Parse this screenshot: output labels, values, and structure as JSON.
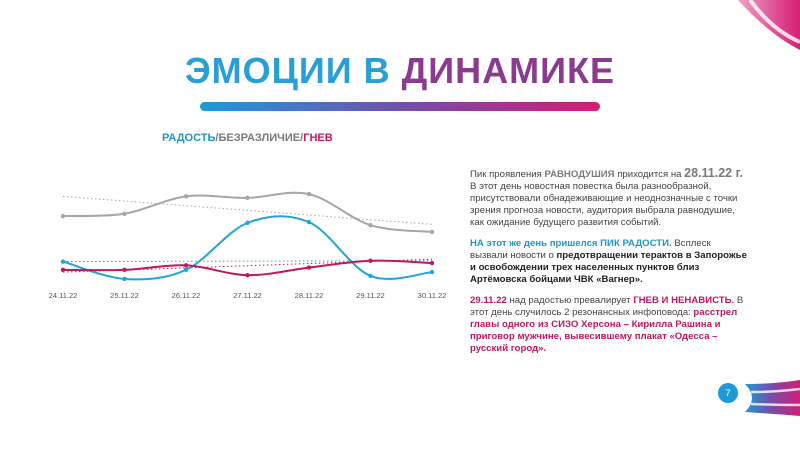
{
  "title": {
    "part1": "ЭМОЦИИ В ",
    "part2": "ДИНАМИКЕ"
  },
  "chart_data": {
    "type": "line",
    "title_parts": {
      "joy": "РАДОСТЬ",
      "sep1": "/",
      "indifference": "БЕЗРАЗЛИЧИЕ",
      "sep2": "/",
      "anger": "ГНЕВ"
    },
    "categories": [
      "24.11.22",
      "25.11.22",
      "26.11.22",
      "27.11.22",
      "28.11.22",
      "29.11.22",
      "30.11.22"
    ],
    "series": [
      {
        "name": "БЕЗРАЗЛИЧИЕ",
        "color": "#a6a6a6",
        "values": [
          69,
          72,
          95,
          93,
          98,
          57,
          48
        ]
      },
      {
        "name": "РАДОСТЬ",
        "color": "#1fa6d6",
        "values": [
          9,
          -14,
          -2,
          60,
          61,
          -10,
          -5
        ]
      },
      {
        "name": "ГНЕВ",
        "color": "#c2185b",
        "values": [
          -2,
          -2,
          4,
          -9,
          1,
          10,
          7
        ]
      }
    ],
    "trendlines": [
      {
        "series": "БЕЗРАЗЛИЧИЕ",
        "color": "#a6a6a6",
        "style": "dotted",
        "from": 95,
        "to": 58
      },
      {
        "series": "РАДОСТЬ",
        "color": "#1fa6d6",
        "style": "dotted",
        "from": 9,
        "to": 10
      },
      {
        "series": "ГНЕВ",
        "color": "#c2185b",
        "style": "dotted",
        "from": -5,
        "to": 12
      }
    ],
    "ylim": [
      -22,
      110
    ],
    "grid": false,
    "legend": "none"
  },
  "text": {
    "p1_a": "Пик проявления ",
    "p1_b": "РАВНОДУШИЯ",
    "p1_c": " приходится на ",
    "p1_d": "28.11.22 г.",
    "p1_e": " В этот день новостная повестка была разнообразной, присутствовали обнадеживающие и неоднозначные с точки зрения прогноза новости, аудитория выбрала равнодушие, как ожидание будущего развития событий.",
    "p2_a": "НА этот же день пришелся ПИК РАДОСТИ.",
    "p2_b": " Всплеск вызвали новости о ",
    "p2_c": "предотвращении терактов в Запорожье и  освобождении трех населенных пунктов близ Артёмовска бойцами ЧВК «Вагнер».",
    "p3_a": "29.11.22",
    "p3_b": " над радостью превалирует ",
    "p3_c": "ГНЕВ И НЕНАВИСТЬ.",
    "p3_d": " В этот день случилось 2 резонансных инфоповода: ",
    "p3_e": "расстрел главы одного из СИЗО Херсона – Кирилла Рашина и приговор мужчине, вывесившему плакат «Одесса – русский город»."
  },
  "page_number": "7",
  "colors": {
    "blue": "#1e9ad8",
    "purple": "#7a4aa6",
    "pink": "#d51d73",
    "gray": "#a6a6a6"
  }
}
